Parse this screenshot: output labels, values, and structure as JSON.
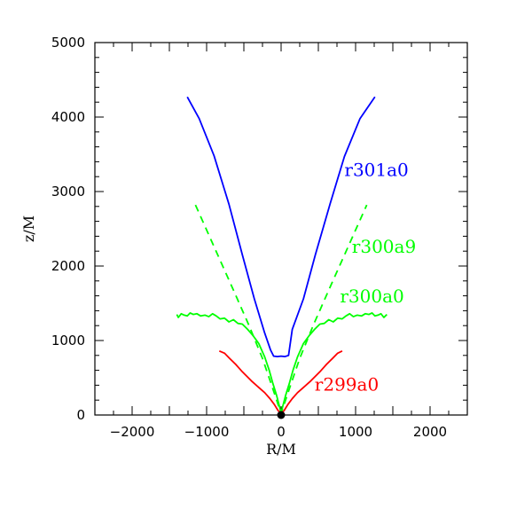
{
  "chart_data": {
    "type": "line",
    "xlabel": "R/M",
    "ylabel": "z/M",
    "xlim": [
      -2500,
      2500
    ],
    "ylim": [
      0,
      5000
    ],
    "x_ticks": [
      -2000,
      -1000,
      0,
      1000,
      2000
    ],
    "y_ticks": [
      0,
      1000,
      2000,
      3000,
      4000,
      5000
    ],
    "x_tick_labels": [
      "−2000",
      "−1000",
      "0",
      "1000",
      "2000"
    ],
    "y_tick_labels": [
      "0",
      "1000",
      "2000",
      "3000",
      "4000",
      "5000"
    ],
    "grid": false,
    "origin_marker": {
      "x": 0,
      "y": 0,
      "color": "#000000"
    },
    "series": [
      {
        "name": "r301a0",
        "color": "#0000ff",
        "style": "solid",
        "points": [
          [
            -1260,
            4270
          ],
          [
            -1100,
            3980
          ],
          [
            -900,
            3480
          ],
          [
            -700,
            2830
          ],
          [
            -520,
            2150
          ],
          [
            -360,
            1560
          ],
          [
            -220,
            1100
          ],
          [
            -140,
            870
          ],
          [
            -100,
            790
          ],
          [
            -50,
            785
          ],
          [
            0,
            790
          ],
          [
            50,
            785
          ],
          [
            100,
            800
          ],
          [
            150,
            1150
          ],
          [
            300,
            1560
          ],
          [
            460,
            2150
          ],
          [
            660,
            2840
          ],
          [
            850,
            3470
          ],
          [
            1060,
            3980
          ],
          [
            1260,
            4270
          ]
        ]
      },
      {
        "name": "r300a9",
        "color": "#00ff00",
        "style": "dashed",
        "points": [
          [
            -1150,
            2820
          ],
          [
            -900,
            2260
          ],
          [
            -650,
            1700
          ],
          [
            -430,
            1200
          ],
          [
            -250,
            760
          ],
          [
            -120,
            380
          ],
          [
            -40,
            140
          ],
          [
            0,
            20
          ],
          [
            40,
            140
          ],
          [
            120,
            380
          ],
          [
            250,
            760
          ],
          [
            430,
            1200
          ],
          [
            650,
            1700
          ],
          [
            900,
            2260
          ],
          [
            1150,
            2820
          ]
        ]
      },
      {
        "name": "r300a0",
        "color": "#00ff00",
        "style": "solid",
        "points": [
          [
            -1400,
            1350
          ],
          [
            -1380,
            1310
          ],
          [
            -1340,
            1360
          ],
          [
            -1300,
            1340
          ],
          [
            -1260,
            1330
          ],
          [
            -1220,
            1370
          ],
          [
            -1180,
            1350
          ],
          [
            -1130,
            1360
          ],
          [
            -1080,
            1330
          ],
          [
            -1020,
            1340
          ],
          [
            -970,
            1320
          ],
          [
            -920,
            1360
          ],
          [
            -870,
            1330
          ],
          [
            -820,
            1290
          ],
          [
            -760,
            1300
          ],
          [
            -700,
            1250
          ],
          [
            -640,
            1280
          ],
          [
            -580,
            1230
          ],
          [
            -520,
            1220
          ],
          [
            -450,
            1150
          ],
          [
            -380,
            1070
          ],
          [
            -300,
            960
          ],
          [
            -220,
            780
          ],
          [
            -160,
            600
          ],
          [
            -110,
            420
          ],
          [
            -60,
            260
          ],
          [
            -20,
            110
          ],
          [
            0,
            20
          ],
          [
            20,
            110
          ],
          [
            60,
            260
          ],
          [
            110,
            420
          ],
          [
            160,
            600
          ],
          [
            220,
            780
          ],
          [
            300,
            960
          ],
          [
            380,
            1070
          ],
          [
            450,
            1150
          ],
          [
            520,
            1220
          ],
          [
            580,
            1230
          ],
          [
            640,
            1280
          ],
          [
            700,
            1250
          ],
          [
            760,
            1300
          ],
          [
            820,
            1290
          ],
          [
            870,
            1330
          ],
          [
            920,
            1360
          ],
          [
            970,
            1320
          ],
          [
            1020,
            1340
          ],
          [
            1080,
            1330
          ],
          [
            1130,
            1360
          ],
          [
            1180,
            1350
          ],
          [
            1220,
            1370
          ],
          [
            1260,
            1330
          ],
          [
            1300,
            1340
          ],
          [
            1340,
            1360
          ],
          [
            1380,
            1310
          ],
          [
            1420,
            1350
          ]
        ]
      },
      {
        "name": "r299a0",
        "color": "#ff0000",
        "style": "solid",
        "points": [
          [
            -830,
            860
          ],
          [
            -760,
            830
          ],
          [
            -690,
            760
          ],
          [
            -610,
            680
          ],
          [
            -520,
            580
          ],
          [
            -400,
            460
          ],
          [
            -300,
            370
          ],
          [
            -220,
            300
          ],
          [
            -150,
            220
          ],
          [
            -90,
            140
          ],
          [
            -40,
            60
          ],
          [
            0,
            20
          ],
          [
            40,
            60
          ],
          [
            90,
            140
          ],
          [
            150,
            220
          ],
          [
            220,
            300
          ],
          [
            300,
            370
          ],
          [
            400,
            460
          ],
          [
            520,
            580
          ],
          [
            610,
            680
          ],
          [
            690,
            760
          ],
          [
            760,
            830
          ],
          [
            820,
            860
          ]
        ]
      }
    ],
    "annotations": [
      {
        "text": "r301a0",
        "color": "#0000ff",
        "x": 850,
        "y": 3210
      },
      {
        "text": "r300a9",
        "color": "#00ff00",
        "x": 950,
        "y": 2180
      },
      {
        "text": "r300a0",
        "color": "#00ff00",
        "x": 790,
        "y": 1510
      },
      {
        "text": "r299a0",
        "color": "#ff0000",
        "x": 450,
        "y": 330
      }
    ]
  }
}
